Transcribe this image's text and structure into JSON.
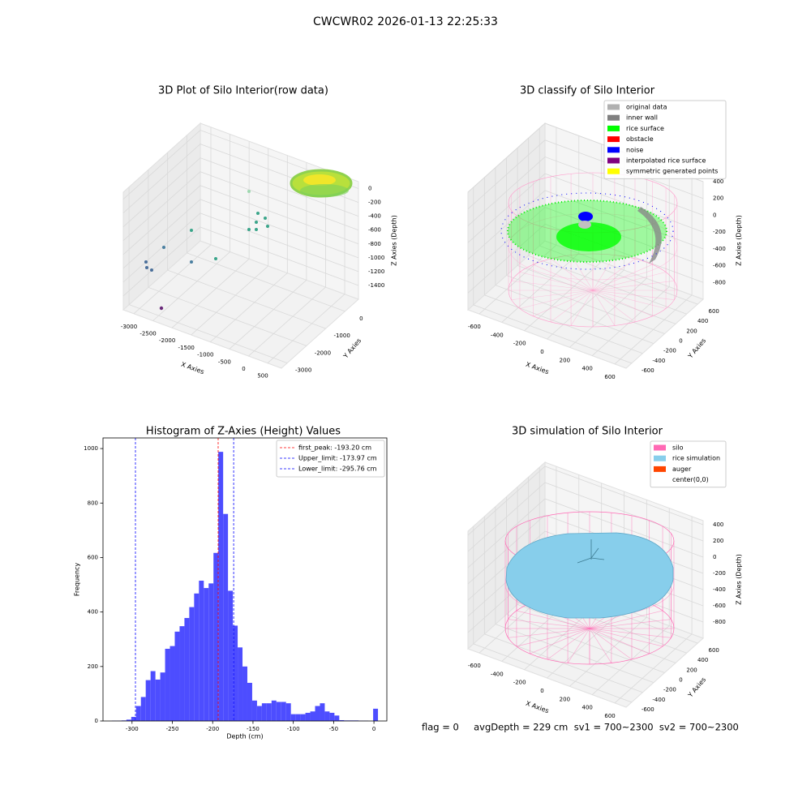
{
  "title": "CWCWR02 2026-01-13 22:25:33",
  "footer": "flag = 0     avgDepth = 229 cm  sv1 = 700~2300  sv2 = 700~2300",
  "chart_data": [
    {
      "type": "scatter3d",
      "title": "3D Plot of Silo Interior(row data)",
      "xlabel": "X Axies",
      "ylabel": "Y Axies",
      "zlabel": "Z Axies (Depth)",
      "xlim": [
        -3276,
        860
      ],
      "ylim": [
        -3300,
        700
      ],
      "zlim": [
        -1600,
        100
      ],
      "xticks": [
        -3000,
        -2500,
        -2000,
        -1500,
        -1000,
        -500,
        0,
        500
      ],
      "yticks": [
        -3000,
        -2000,
        -1000,
        0
      ],
      "zticks": [
        -1400,
        -1200,
        -1000,
        -800,
        -600,
        -400,
        -200,
        0
      ]
    },
    {
      "type": "scatter3d",
      "title": "3D classify of Silo Interior",
      "xlabel": "X Axies",
      "ylabel": "Y Axies",
      "zlabel": "Z Axies (Depth)",
      "xlim": [
        -700,
        700
      ],
      "ylim": [
        -700,
        700
      ],
      "zlim": [
        -1000,
        400
      ],
      "xticks": [
        -600,
        -400,
        -200,
        0,
        200,
        400,
        600
      ],
      "yticks": [
        -600,
        -400,
        -200,
        0,
        200,
        400,
        600
      ],
      "zticks": [
        -800,
        -600,
        -400,
        -200,
        0,
        200,
        400
      ],
      "legend": [
        {
          "name": "original data",
          "color": "#b0b0b0"
        },
        {
          "name": "inner wall",
          "color": "#808080"
        },
        {
          "name": "rice surface",
          "color": "#00ff00"
        },
        {
          "name": "obstacle",
          "color": "#ff0000"
        },
        {
          "name": "noise",
          "color": "#0000ff"
        },
        {
          "name": "interpolated rice surface",
          "color": "#800080"
        },
        {
          "name": "symmetric generated points",
          "color": "#ffff00"
        }
      ]
    },
    {
      "type": "histogram",
      "title": "Histogram of Z-Axies (Height) Values",
      "xlabel": "Depth (cm)",
      "ylabel": "Frequency",
      "color": "#4d4dff",
      "bins": [
        -325,
        -319,
        -313,
        -307,
        -301,
        -295,
        -289,
        -283,
        -277,
        -271,
        -265,
        -259,
        -253,
        -247,
        -241,
        -235,
        -229,
        -223,
        -217,
        -211,
        -205,
        -199,
        -193,
        -187,
        -181,
        -175,
        -169,
        -163,
        -157,
        -151,
        -145,
        -139,
        -133,
        -127,
        -121,
        -115,
        -109,
        -103,
        -97,
        -91,
        -85,
        -79,
        -73,
        -67,
        -61,
        -55,
        -49,
        -43,
        -37,
        -31,
        -25,
        -19,
        -13,
        -7,
        -1,
        5
      ],
      "values": [
        1,
        1,
        2,
        5,
        15,
        55,
        88,
        150,
        183,
        152,
        178,
        265,
        275,
        328,
        348,
        378,
        418,
        468,
        515,
        488,
        505,
        617,
        988,
        760,
        478,
        350,
        270,
        200,
        140,
        75,
        55,
        65,
        65,
        75,
        70,
        70,
        65,
        25,
        25,
        25,
        30,
        35,
        55,
        65,
        35,
        30,
        20,
        3,
        2,
        2,
        2,
        1,
        1,
        0,
        45
      ],
      "xlim": [
        -336,
        16
      ],
      "ylim": [
        0,
        1039
      ],
      "xticks": [
        -300,
        -250,
        -200,
        -150,
        -100,
        -50,
        0
      ],
      "yticks": [
        0,
        200,
        400,
        600,
        800,
        1000
      ],
      "legend_loc": "upper right",
      "vlines": [
        {
          "label": "first_peak: -193.20 cm",
          "value": -193.2,
          "color": "#ff0000"
        },
        {
          "label": "Upper_limit: -173.97 cm",
          "value": -173.97,
          "color": "#0000ff"
        },
        {
          "label": "Lower_limit: -295.76 cm",
          "value": -295.76,
          "color": "#0000ff"
        }
      ]
    },
    {
      "type": "surface3d",
      "title": "3D simulation of Silo Interior",
      "xlabel": "X Axies",
      "ylabel": "Y Axies",
      "zlabel": "Z Axies (Depth)",
      "xlim": [
        -700,
        700
      ],
      "ylim": [
        -700,
        700
      ],
      "zlim": [
        -1000,
        450
      ],
      "xticks": [
        -600,
        -400,
        -200,
        0,
        200,
        400,
        600
      ],
      "yticks": [
        -600,
        -400,
        -200,
        0,
        200,
        400,
        600
      ],
      "zticks": [
        -800,
        -600,
        -400,
        -200,
        0,
        200,
        400
      ],
      "legend": [
        {
          "name": "silo",
          "color": "#ff69b4"
        },
        {
          "name": "rice simulation",
          "color": "#87ceeb"
        },
        {
          "name": "auger",
          "color": "#ff4500"
        },
        {
          "name": "center(0,0)",
          "color": "#ffffff"
        }
      ]
    }
  ]
}
